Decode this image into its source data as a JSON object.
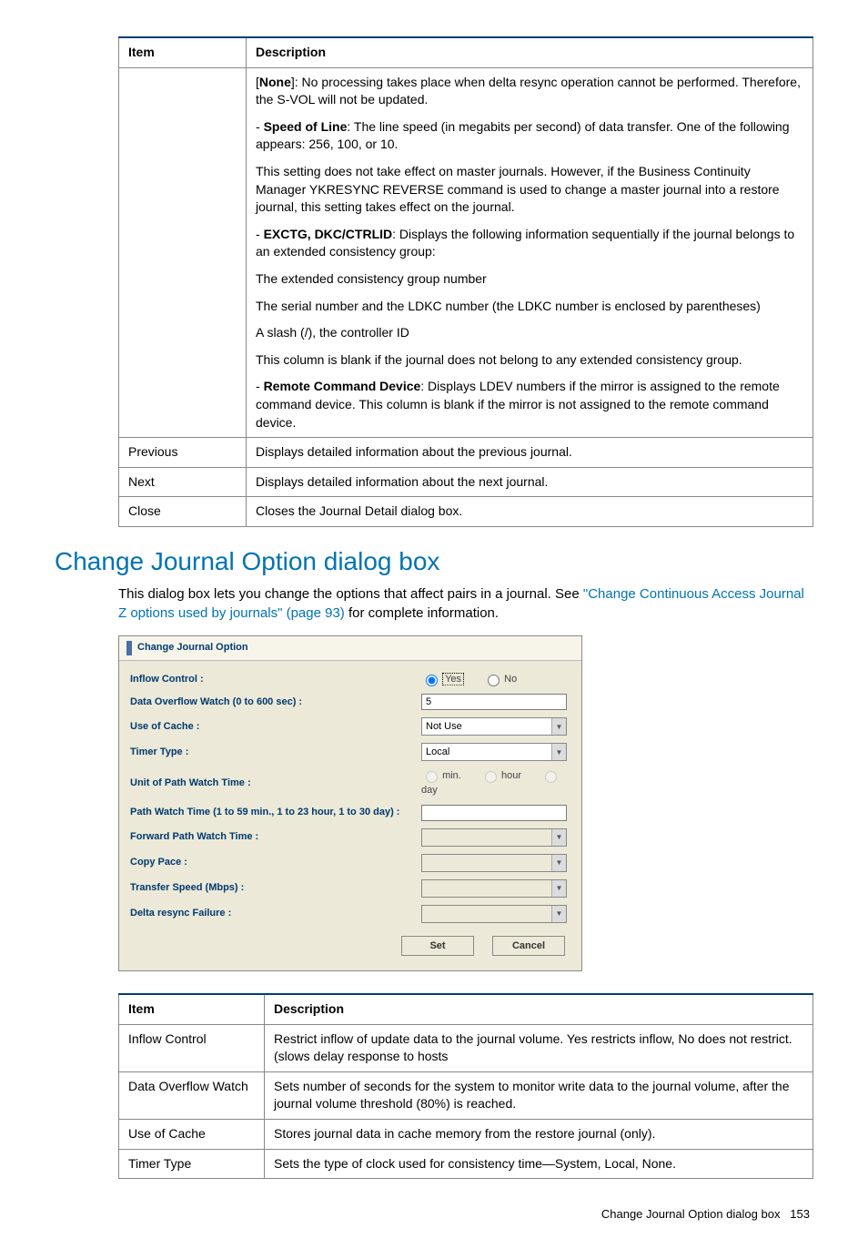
{
  "table1": {
    "headers": {
      "item": "Item",
      "description": "Description"
    },
    "rows": [
      {
        "item": "",
        "paras": [
          {
            "prefix": "[",
            "bold": "None",
            "text": "]: No processing takes place when delta resync operation cannot be performed. Therefore, the S-VOL will not be updated."
          },
          {
            "prefix": "- ",
            "bold": "Speed of Line",
            "text": ": The line speed (in megabits per second) of data transfer. One of the following appears: 256, 100, or 10."
          },
          {
            "text": "This setting does not take effect on master journals. However, if the Business Continuity Manager YKRESYNC REVERSE command is used to change a master journal into a restore journal, this setting takes effect on the journal."
          },
          {
            "prefix": "- ",
            "bold": "EXCTG, DKC/CTRLID",
            "text": ": Displays the following information sequentially if the journal belongs to an extended consistency group:"
          },
          {
            "text": "The extended consistency group number"
          },
          {
            "text": "The serial number and the LDKC number (the LDKC number is enclosed by parentheses)"
          },
          {
            "text": "A slash (/), the controller ID"
          },
          {
            "text": "This column is blank if the journal does not belong to any extended consistency group."
          },
          {
            "prefix": "- ",
            "bold": "Remote Command Device",
            "text": ": Displays LDEV numbers if the mirror is assigned to the remote command device. This column is blank if the mirror is not assigned to the remote command device."
          }
        ]
      },
      {
        "item": "Previous",
        "paras": [
          {
            "text": "Displays detailed information about the previous journal."
          }
        ]
      },
      {
        "item": "Next",
        "paras": [
          {
            "text": "Displays detailed information about the next journal."
          }
        ]
      },
      {
        "item": "Close",
        "paras": [
          {
            "text": "Closes the Journal Detail dialog box."
          }
        ]
      }
    ]
  },
  "heading": "Change Journal Option dialog box",
  "intro": {
    "pre": "This dialog box lets you change the options that affect pairs in a journal. See ",
    "link": "\"Change Continuous Access Journal Z options used by journals\" (page 93)",
    "post": " for complete information."
  },
  "dialog": {
    "title": "Change Journal Option",
    "inflow": {
      "label": "Inflow Control :",
      "yes": "Yes",
      "no": "No"
    },
    "overflow": {
      "label": "Data Overflow Watch (0 to 600 sec) :",
      "value": "5"
    },
    "cache": {
      "label": "Use of Cache :",
      "value": "Not Use"
    },
    "timer": {
      "label": "Timer Type :",
      "value": "Local"
    },
    "unit": {
      "label": "Unit of Path Watch Time :",
      "min": "min.",
      "hour": "hour",
      "day": "day"
    },
    "pathwatch": {
      "label": "Path Watch Time (1 to 59 min., 1 to 23 hour, 1 to 30 day) :"
    },
    "forward": {
      "label": "Forward Path Watch Time :"
    },
    "pace": {
      "label": "Copy Pace :"
    },
    "speed": {
      "label": "Transfer Speed (Mbps) :"
    },
    "delta": {
      "label": "Delta resync Failure :"
    },
    "buttons": {
      "set": "Set",
      "cancel": "Cancel"
    }
  },
  "table2": {
    "headers": {
      "item": "Item",
      "description": "Description"
    },
    "rows": [
      {
        "item": "Inflow Control",
        "desc": "Restrict inflow of update data to the journal volume. Yes restricts inflow, No does not restrict. (slows delay response to hosts"
      },
      {
        "item": "Data Overflow Watch",
        "desc": "Sets number of seconds for the system to monitor write data to the journal volume, after the journal volume threshold (80%) is reached."
      },
      {
        "item": "Use of Cache",
        "desc": "Stores journal data in cache memory from the restore journal (only)."
      },
      {
        "item": "Timer Type",
        "desc": "Sets the type of clock used for consistency time—System, Local, None."
      }
    ]
  },
  "footer": {
    "title": "Change Journal Option dialog box",
    "page": "153"
  }
}
